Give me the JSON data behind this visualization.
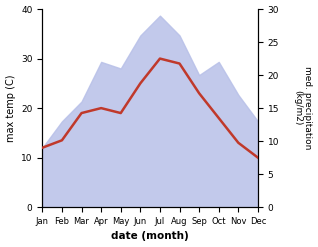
{
  "months": [
    "Jan",
    "Feb",
    "Mar",
    "Apr",
    "May",
    "Jun",
    "Jul",
    "Aug",
    "Sep",
    "Oct",
    "Nov",
    "Dec"
  ],
  "max_temp": [
    12,
    13.5,
    19,
    20,
    19,
    25,
    30,
    29,
    23,
    18,
    13,
    10
  ],
  "precipitation": [
    9,
    13,
    16,
    22,
    21,
    26,
    29,
    26,
    20,
    22,
    17,
    13
  ],
  "temp_color": "#c0392b",
  "precip_fill_color": "#b8c0e8",
  "temp_ylim": [
    0,
    40
  ],
  "precip_ylim": [
    0,
    30
  ],
  "temp_yticks": [
    0,
    10,
    20,
    30,
    40
  ],
  "precip_yticks": [
    0,
    5,
    10,
    15,
    20,
    25,
    30
  ],
  "xlabel": "date (month)",
  "ylabel_left": "max temp (C)",
  "ylabel_right": "med. precipitation\n(kg/m2)"
}
